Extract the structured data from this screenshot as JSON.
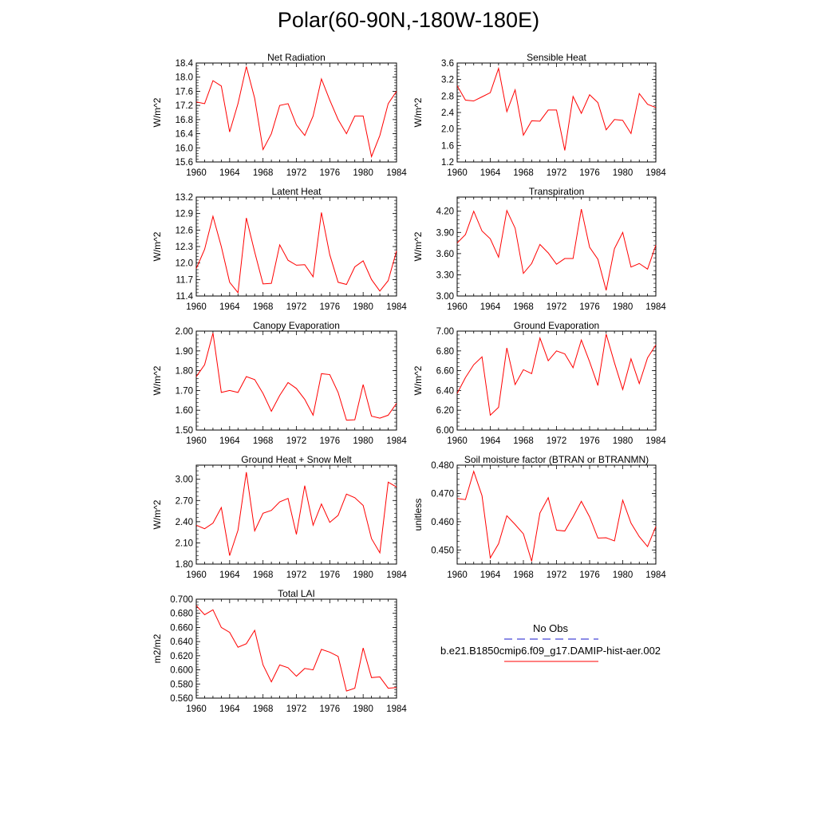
{
  "figure": {
    "title": "Polar(60-90N,-180W-180E)"
  },
  "legend": {
    "items": [
      {
        "label": "No Obs",
        "color": "#1a1acc",
        "style": "dashed"
      },
      {
        "label": "b.e21.B1850cmip6.f09_g17.DAMIP-hist-aer.002",
        "color": "#ff0000",
        "style": "solid"
      }
    ]
  },
  "chart_data": [
    {
      "type": "line",
      "title": "Net Radiation",
      "ylabel": "W/m^2",
      "xlabel": "",
      "x": [
        1960,
        1961,
        1962,
        1963,
        1964,
        1965,
        1966,
        1967,
        1968,
        1969,
        1970,
        1971,
        1972,
        1973,
        1974,
        1975,
        1976,
        1977,
        1978,
        1979,
        1980,
        1981,
        1982,
        1983,
        1984
      ],
      "xlim": [
        1960,
        1984
      ],
      "xticks": [
        1960,
        1964,
        1968,
        1972,
        1976,
        1980,
        1984
      ],
      "ylim": [
        15.6,
        18.4
      ],
      "yticks": [
        "15.6",
        "16.0",
        "16.4",
        "16.8",
        "17.2",
        "17.6",
        "18.0",
        "18.4"
      ],
      "series": [
        {
          "color": "#ff0000",
          "values": [
            17.3,
            17.25,
            17.9,
            17.75,
            16.45,
            17.25,
            18.3,
            17.4,
            15.95,
            16.4,
            17.2,
            17.25,
            16.65,
            16.35,
            16.9,
            17.95,
            17.35,
            16.8,
            16.4,
            16.9,
            16.9,
            15.75,
            16.35,
            17.25,
            17.6
          ]
        }
      ]
    },
    {
      "type": "line",
      "title": "Sensible Heat",
      "ylabel": "W/m^2",
      "xlabel": "",
      "x": [
        1960,
        1961,
        1962,
        1963,
        1964,
        1965,
        1966,
        1967,
        1968,
        1969,
        1970,
        1971,
        1972,
        1973,
        1974,
        1975,
        1976,
        1977,
        1978,
        1979,
        1980,
        1981,
        1982,
        1983,
        1984
      ],
      "xlim": [
        1960,
        1984
      ],
      "xticks": [
        1960,
        1964,
        1968,
        1972,
        1976,
        1980,
        1984
      ],
      "ylim": [
        1.2,
        3.6
      ],
      "yticks": [
        "1.2",
        "1.6",
        "2.0",
        "2.4",
        "2.8",
        "3.2",
        "3.6"
      ],
      "series": [
        {
          "color": "#ff0000",
          "values": [
            3.05,
            2.7,
            2.68,
            2.78,
            2.88,
            3.47,
            2.42,
            2.95,
            1.85,
            2.2,
            2.19,
            2.46,
            2.46,
            1.48,
            2.79,
            2.38,
            2.83,
            2.64,
            1.98,
            2.23,
            2.21,
            1.89,
            2.86,
            2.6,
            2.52
          ]
        }
      ]
    },
    {
      "type": "line",
      "title": "Latent Heat",
      "ylabel": "W/m^2",
      "xlabel": "",
      "x": [
        1960,
        1961,
        1962,
        1963,
        1964,
        1965,
        1966,
        1967,
        1968,
        1969,
        1970,
        1971,
        1972,
        1973,
        1974,
        1975,
        1976,
        1977,
        1978,
        1979,
        1980,
        1981,
        1982,
        1983,
        1984
      ],
      "xlim": [
        1960,
        1984
      ],
      "xticks": [
        1960,
        1964,
        1968,
        1972,
        1976,
        1980,
        1984
      ],
      "ylim": [
        11.4,
        13.2
      ],
      "yticks": [
        "11.4",
        "11.7",
        "12.0",
        "12.3",
        "12.6",
        "12.9",
        "13.2"
      ],
      "series": [
        {
          "color": "#ff0000",
          "values": [
            11.9,
            12.25,
            12.85,
            12.3,
            11.65,
            11.46,
            12.82,
            12.2,
            11.62,
            11.63,
            12.33,
            12.05,
            11.96,
            11.97,
            11.75,
            12.92,
            12.15,
            11.65,
            11.61,
            11.93,
            12.04,
            11.7,
            11.49,
            11.68,
            12.22
          ]
        }
      ]
    },
    {
      "type": "line",
      "title": "Transpiration",
      "ylabel": "W/m^2",
      "xlabel": "",
      "x": [
        1960,
        1961,
        1962,
        1963,
        1964,
        1965,
        1966,
        1967,
        1968,
        1969,
        1970,
        1971,
        1972,
        1973,
        1974,
        1975,
        1976,
        1977,
        1978,
        1979,
        1980,
        1981,
        1982,
        1983,
        1984
      ],
      "xlim": [
        1960,
        1984
      ],
      "xticks": [
        1960,
        1964,
        1968,
        1972,
        1976,
        1980,
        1984
      ],
      "ylim": [
        3.0,
        4.4
      ],
      "yticks": [
        "3.00",
        "3.30",
        "3.60",
        "3.90",
        "4.20"
      ],
      "series": [
        {
          "color": "#ff0000",
          "values": [
            3.75,
            3.87,
            4.2,
            3.92,
            3.81,
            3.55,
            4.21,
            3.96,
            3.32,
            3.46,
            3.73,
            3.61,
            3.45,
            3.53,
            3.53,
            4.23,
            3.69,
            3.52,
            3.08,
            3.67,
            3.9,
            3.41,
            3.46,
            3.38,
            3.72
          ]
        }
      ]
    },
    {
      "type": "line",
      "title": "Canopy Evaporation",
      "ylabel": "W/m^2",
      "xlabel": "",
      "x": [
        1960,
        1961,
        1962,
        1963,
        1964,
        1965,
        1966,
        1967,
        1968,
        1969,
        1970,
        1971,
        1972,
        1973,
        1974,
        1975,
        1976,
        1977,
        1978,
        1979,
        1980,
        1981,
        1982,
        1983,
        1984
      ],
      "xlim": [
        1960,
        1984
      ],
      "xticks": [
        1960,
        1964,
        1968,
        1972,
        1976,
        1980,
        1984
      ],
      "ylim": [
        1.5,
        2.0
      ],
      "yticks": [
        "1.50",
        "1.60",
        "1.70",
        "1.80",
        "1.90",
        "2.00"
      ],
      "series": [
        {
          "color": "#ff0000",
          "values": [
            1.77,
            1.83,
            1.99,
            1.69,
            1.7,
            1.69,
            1.77,
            1.755,
            1.685,
            1.595,
            1.675,
            1.74,
            1.71,
            1.655,
            1.575,
            1.785,
            1.78,
            1.69,
            1.55,
            1.552,
            1.73,
            1.57,
            1.56,
            1.575,
            1.635
          ]
        }
      ]
    },
    {
      "type": "line",
      "title": "Ground Evaporation",
      "ylabel": "W/m^2",
      "xlabel": "",
      "x": [
        1960,
        1961,
        1962,
        1963,
        1964,
        1965,
        1966,
        1967,
        1968,
        1969,
        1970,
        1971,
        1972,
        1973,
        1974,
        1975,
        1976,
        1977,
        1978,
        1979,
        1980,
        1981,
        1982,
        1983,
        1984
      ],
      "xlim": [
        1960,
        1984
      ],
      "xticks": [
        1960,
        1964,
        1968,
        1972,
        1976,
        1980,
        1984
      ],
      "ylim": [
        6.0,
        7.0
      ],
      "yticks": [
        "6.00",
        "6.20",
        "6.40",
        "6.60",
        "6.80",
        "7.00"
      ],
      "series": [
        {
          "color": "#ff0000",
          "values": [
            6.37,
            6.53,
            6.66,
            6.74,
            6.15,
            6.23,
            6.83,
            6.46,
            6.61,
            6.57,
            6.93,
            6.7,
            6.8,
            6.77,
            6.63,
            6.91,
            6.69,
            6.45,
            6.97,
            6.68,
            6.41,
            6.72,
            6.47,
            6.73,
            6.86
          ]
        }
      ]
    },
    {
      "type": "line",
      "title": "Ground Heat + Snow Melt",
      "ylabel": "W/m^2",
      "xlabel": "",
      "x": [
        1960,
        1961,
        1962,
        1963,
        1964,
        1965,
        1966,
        1967,
        1968,
        1969,
        1970,
        1971,
        1972,
        1973,
        1974,
        1975,
        1976,
        1977,
        1978,
        1979,
        1980,
        1981,
        1982,
        1983,
        1984
      ],
      "xlim": [
        1960,
        1984
      ],
      "xticks": [
        1960,
        1964,
        1968,
        1972,
        1976,
        1980,
        1984
      ],
      "ylim": [
        1.8,
        3.2
      ],
      "yticks": [
        "1.80",
        "2.10",
        "2.40",
        "2.70",
        "3.00"
      ],
      "series": [
        {
          "color": "#ff0000",
          "values": [
            2.35,
            2.3,
            2.38,
            2.6,
            1.92,
            2.28,
            3.1,
            2.27,
            2.52,
            2.56,
            2.68,
            2.73,
            2.22,
            2.91,
            2.35,
            2.65,
            2.39,
            2.49,
            2.79,
            2.74,
            2.63,
            2.16,
            1.96,
            2.96,
            2.89
          ]
        }
      ]
    },
    {
      "type": "line",
      "title": "Soil moisture factor (BTRAN or BTRANMN)",
      "ylabel": "unitless",
      "xlabel": "",
      "x": [
        1960,
        1961,
        1962,
        1963,
        1964,
        1965,
        1966,
        1967,
        1968,
        1969,
        1970,
        1971,
        1972,
        1973,
        1974,
        1975,
        1976,
        1977,
        1978,
        1979,
        1980,
        1981,
        1982,
        1983,
        1984
      ],
      "xlim": [
        1960,
        1984
      ],
      "xticks": [
        1960,
        1964,
        1968,
        1972,
        1976,
        1980,
        1984
      ],
      "ylim": [
        0.445,
        0.48
      ],
      "yticks": [
        "0.450",
        "0.460",
        "0.470",
        "0.480"
      ],
      "series": [
        {
          "color": "#ff0000",
          "values": [
            0.4682,
            0.4678,
            0.4778,
            0.4692,
            0.4472,
            0.4522,
            0.4621,
            0.459,
            0.4557,
            0.446,
            0.4631,
            0.4685,
            0.457,
            0.4567,
            0.4617,
            0.4672,
            0.4617,
            0.4542,
            0.4543,
            0.4532,
            0.4676,
            0.4595,
            0.4547,
            0.4512,
            0.4583
          ]
        }
      ]
    },
    {
      "type": "line",
      "title": "Total LAI",
      "ylabel": "m2/m2",
      "xlabel": "",
      "x": [
        1960,
        1961,
        1962,
        1963,
        1964,
        1965,
        1966,
        1967,
        1968,
        1969,
        1970,
        1971,
        1972,
        1973,
        1974,
        1975,
        1976,
        1977,
        1978,
        1979,
        1980,
        1981,
        1982,
        1983,
        1984
      ],
      "xlim": [
        1960,
        1984
      ],
      "xticks": [
        1960,
        1964,
        1968,
        1972,
        1976,
        1980,
        1984
      ],
      "ylim": [
        0.56,
        0.7
      ],
      "yticks": [
        "0.560",
        "0.580",
        "0.600",
        "0.620",
        "0.640",
        "0.660",
        "0.680",
        "0.700"
      ],
      "series": [
        {
          "color": "#ff0000",
          "values": [
            0.691,
            0.678,
            0.685,
            0.66,
            0.653,
            0.632,
            0.637,
            0.656,
            0.607,
            0.583,
            0.607,
            0.603,
            0.591,
            0.602,
            0.6,
            0.629,
            0.625,
            0.619,
            0.57,
            0.574,
            0.631,
            0.589,
            0.59,
            0.574,
            0.575
          ]
        }
      ]
    }
  ]
}
